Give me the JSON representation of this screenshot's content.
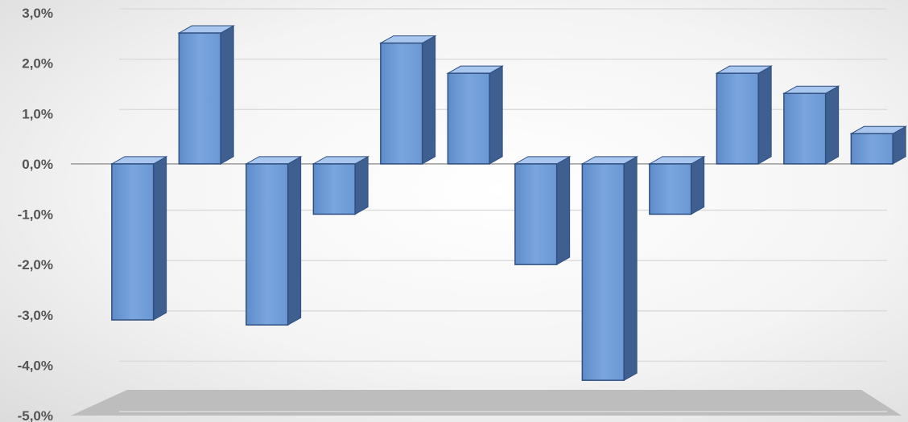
{
  "chart_data": {
    "type": "bar",
    "categories": [
      "",
      "",
      "",
      "",
      "",
      "",
      "",
      "",
      "",
      "",
      "",
      ""
    ],
    "values": [
      -3.1,
      2.6,
      -3.2,
      -1.0,
      2.4,
      1.8,
      -2.0,
      -4.3,
      -1.0,
      1.8,
      1.4,
      0.6
    ],
    "ylim": [
      -5.0,
      3.0
    ],
    "y_ticks": [
      "3,0%",
      "2,0%",
      "1,0%",
      "0,0%",
      "-1,0%",
      "-2,0%",
      "-3,0%",
      "-4,0%",
      "-5,0%"
    ],
    "y_tick_values": [
      3,
      2,
      1,
      0,
      -1,
      -2,
      -3,
      -4,
      -5
    ],
    "grid": true,
    "style": "3d-column",
    "colors": {
      "bar_front": "#6f9bd6",
      "bar_front_light": "#8fb6ea",
      "bar_side": "#3e5f8f",
      "bar_top": "#a9c6ee",
      "bar_edge": "#2f4f80",
      "floor": "#bdbdbd",
      "gridline": "#dcdcdc",
      "axis": "#9a9a9a",
      "tick_label": "#555555"
    }
  }
}
